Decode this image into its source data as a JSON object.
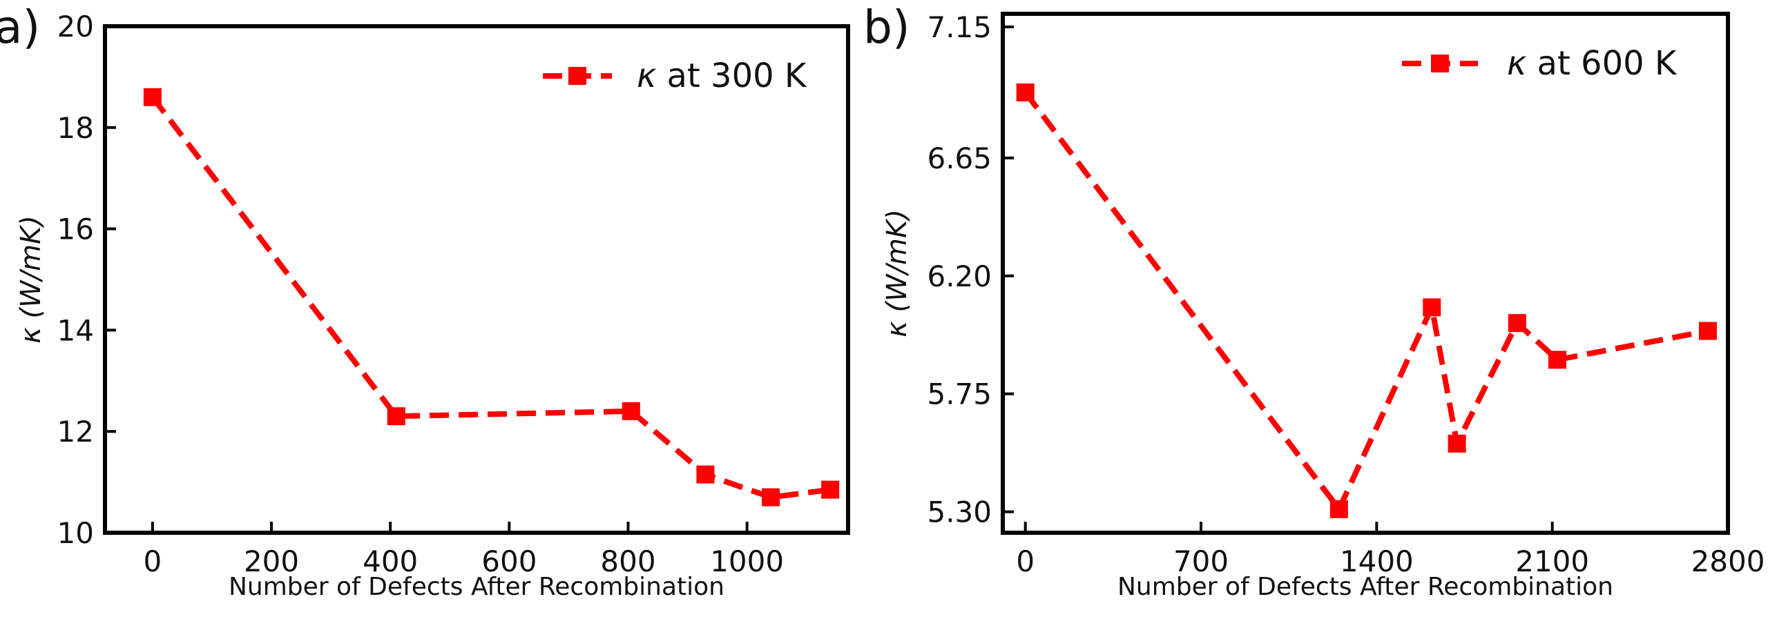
{
  "chart_data": [
    {
      "type": "line",
      "panel_label": "a)",
      "xlabel": "Number of Defects After Recombination",
      "ylabel_symbol": "κ",
      "ylabel_units": "(W/mK)",
      "xlim": [
        -80,
        1170
      ],
      "ylim": [
        10,
        20
      ],
      "xticks": [
        0,
        200,
        400,
        600,
        800,
        1000
      ],
      "yticks": [
        10,
        12,
        14,
        16,
        18,
        20
      ],
      "grid": false,
      "legend_position": "top-right",
      "series": [
        {
          "name_symbol": "κ",
          "name_rest": "at 300 K",
          "color": "#ff0000",
          "line_style": "dashed",
          "marker": "square",
          "x": [
            0,
            410,
            805,
            930,
            1040,
            1140
          ],
          "y": [
            18.6,
            12.3,
            12.4,
            11.15,
            10.7,
            10.85
          ]
        }
      ]
    },
    {
      "type": "line",
      "panel_label": "b)",
      "xlabel": "Number of Defects After Recombination",
      "ylabel_symbol": "κ",
      "ylabel_units": "(W/mK)",
      "xlim": [
        -90,
        2800
      ],
      "ylim": [
        5.22,
        7.2
      ],
      "xticks": [
        0,
        700,
        1400,
        2100,
        2800
      ],
      "yticks": [
        5.3,
        5.75,
        6.2,
        6.65,
        7.15
      ],
      "ytick_labels": [
        "5.30",
        "5.75",
        "6.20",
        "6.65",
        "7.15"
      ],
      "grid": false,
      "legend_position": "top-right",
      "series": [
        {
          "name_symbol": "κ",
          "name_rest": "at 600 K",
          "color": "#ff0000",
          "line_style": "dashed",
          "marker": "square",
          "x": [
            0,
            1250,
            1620,
            1720,
            1960,
            2120,
            2720
          ],
          "y": [
            6.9,
            5.31,
            6.08,
            5.56,
            6.02,
            5.88,
            5.99
          ]
        }
      ]
    }
  ]
}
